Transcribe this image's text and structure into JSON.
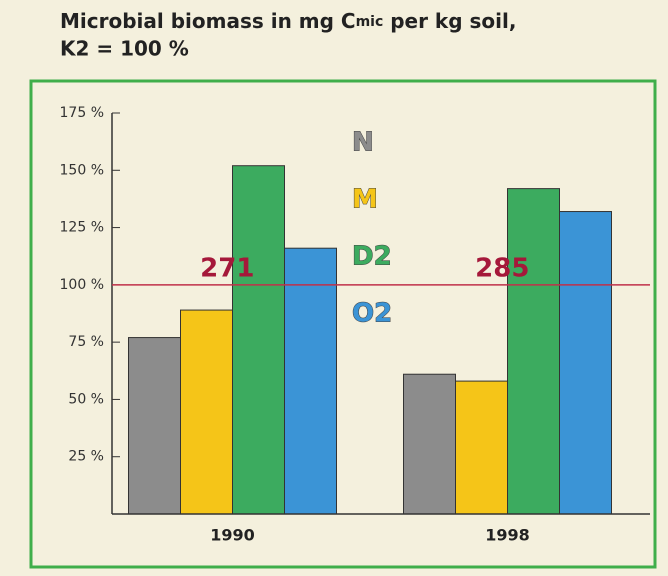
{
  "chart_data": {
    "type": "bar",
    "title": {
      "before": "Microbial biomass in mg C",
      "sub": "mic",
      "after": " per kg soil,"
    },
    "subtitle": "K2 = 100 %",
    "categories": [
      "1990",
      "1998"
    ],
    "series": [
      {
        "name": "N",
        "color": "#8c8c8c",
        "values": [
          77,
          61
        ]
      },
      {
        "name": "M",
        "color": "#f5c518",
        "values": [
          89,
          58
        ]
      },
      {
        "name": "D2",
        "color": "#3cab5f",
        "values": [
          152,
          142
        ]
      },
      {
        "name": "O2",
        "color": "#3b94d6",
        "values": [
          116,
          132
        ]
      }
    ],
    "ylim": [
      0,
      175
    ],
    "yticks": [
      {
        "value": 25,
        "label": "25 %"
      },
      {
        "value": 50,
        "label": "50 %"
      },
      {
        "value": 75,
        "label": "75 %"
      },
      {
        "value": 100,
        "label": "100 %"
      },
      {
        "value": 125,
        "label": "125 %"
      },
      {
        "value": 150,
        "label": "150 %"
      },
      {
        "value": 175,
        "label": "175 %"
      }
    ],
    "reference_line": 100,
    "reference_labels": [
      271,
      285
    ]
  }
}
